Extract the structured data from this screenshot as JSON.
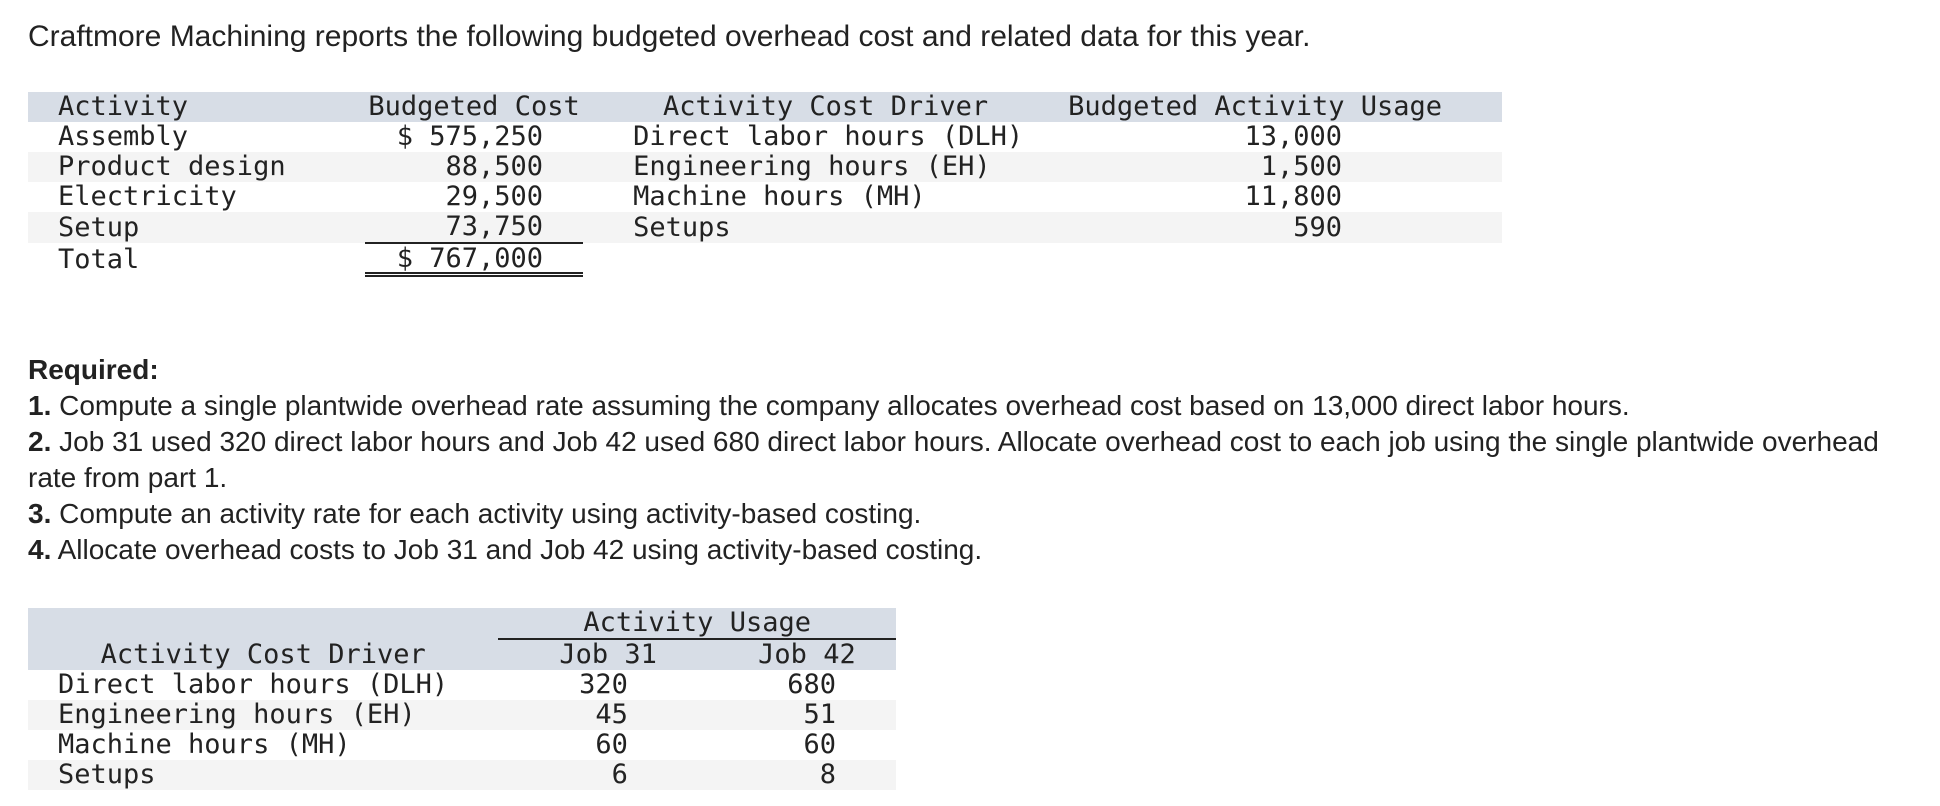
{
  "intro": "Craftmore Machining reports the following budgeted overhead cost and related data for this year.",
  "table1": {
    "headers": [
      "Activity",
      "Budgeted Cost",
      "Activity Cost Driver",
      "Budgeted Activity Usage"
    ],
    "rows": [
      {
        "activity": "Assembly",
        "cost": "$ 575,250",
        "driver": "Direct labor hours (DLH)",
        "usage": "13,000"
      },
      {
        "activity": "Product design",
        "cost": "88,500",
        "driver": "Engineering hours (EH)",
        "usage": "1,500"
      },
      {
        "activity": "Electricity",
        "cost": "29,500",
        "driver": "Machine hours (MH)",
        "usage": "11,800"
      },
      {
        "activity": "Setup",
        "cost": "73,750",
        "driver": "Setups",
        "usage": "590"
      }
    ],
    "total_label": "Total",
    "total_cost": "$ 767,000"
  },
  "required": {
    "heading": "Required:",
    "items": [
      {
        "num": "1.",
        "text": " Compute a single plantwide overhead rate assuming the company allocates overhead cost based on 13,000 direct labor hours."
      },
      {
        "num": "2.",
        "text": " Job 31 used 320 direct labor hours and Job 42 used 680 direct labor hours. Allocate overhead cost to each job using the single plantwide overhead rate from part 1."
      },
      {
        "num": "3.",
        "text": " Compute an activity rate for each activity using activity-based costing."
      },
      {
        "num": "4.",
        "text": " Allocate overhead costs to Job 31 and Job 42 using activity-based costing."
      }
    ]
  },
  "table2": {
    "group_header": "Activity Usage",
    "driver_header": "Activity Cost Driver",
    "job_headers": [
      "Job 31",
      "Job 42"
    ],
    "rows": [
      {
        "driver": "Direct labor hours (DLH)",
        "job31": "320",
        "job42": "680"
      },
      {
        "driver": "Engineering hours (EH)",
        "job31": "45",
        "job42": "51"
      },
      {
        "driver": "Machine hours (MH)",
        "job31": "60",
        "job42": "60"
      },
      {
        "driver": "Setups",
        "job31": "6",
        "job42": "8"
      }
    ]
  }
}
